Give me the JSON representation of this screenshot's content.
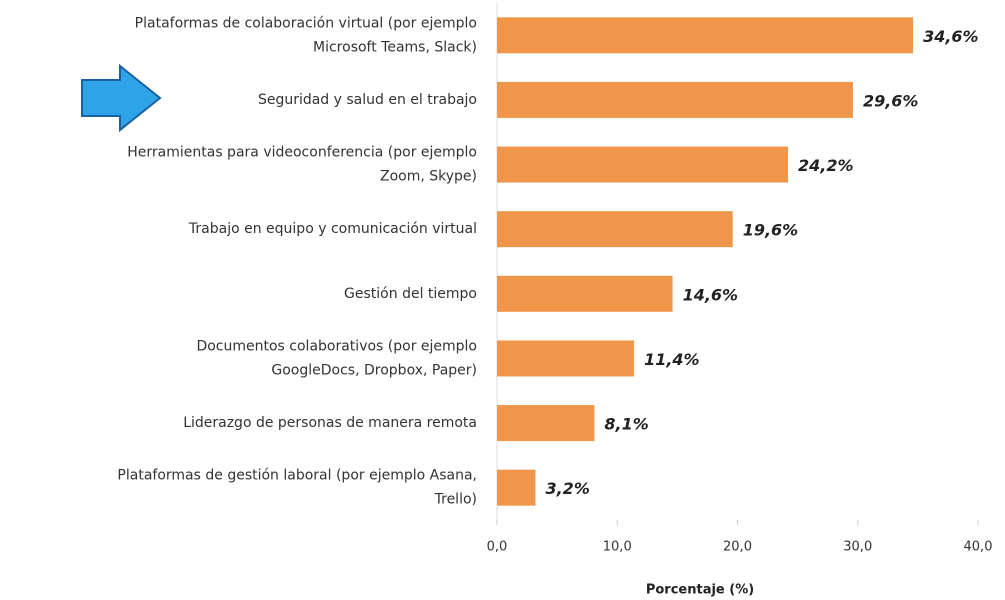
{
  "chart_data": {
    "type": "barh",
    "categories": [
      [
        "Plataformas de colaboración virtual (por ejemplo",
        "Microsoft Teams, Slack)"
      ],
      [
        "Seguridad y salud en el trabajo"
      ],
      [
        "Herramientas para videoconferencia (por ejemplo",
        "Zoom, Skype)"
      ],
      [
        "Trabajo en equipo y comunicación virtual"
      ],
      [
        "Gestión del tiempo"
      ],
      [
        "Documentos colaborativos (por ejemplo",
        "GoogleDocs, Dropbox, Paper)"
      ],
      [
        "Liderazgo de personas de manera remota"
      ],
      [
        "Plataformas de gestión laboral (por ejemplo Asana,",
        "Trello)"
      ]
    ],
    "values": [
      34.6,
      29.6,
      24.2,
      19.6,
      14.6,
      11.4,
      8.1,
      3.2
    ],
    "value_labels": [
      "34,6%",
      "29,6%",
      "24,2%",
      "19,6%",
      "14,6%",
      "11,4%",
      "8,1%",
      "3,2%"
    ],
    "color": "#f0964a",
    "xlim": [
      0,
      40
    ],
    "xticks": [
      {
        "value": 0,
        "label": "0,0"
      },
      {
        "value": 10,
        "label": "10,0"
      },
      {
        "value": 20,
        "label": "20,0"
      },
      {
        "value": 30,
        "label": "30,0"
      },
      {
        "value": 40,
        "label": "40,0"
      }
    ],
    "xlabel": "Porcentaje (%)"
  }
}
